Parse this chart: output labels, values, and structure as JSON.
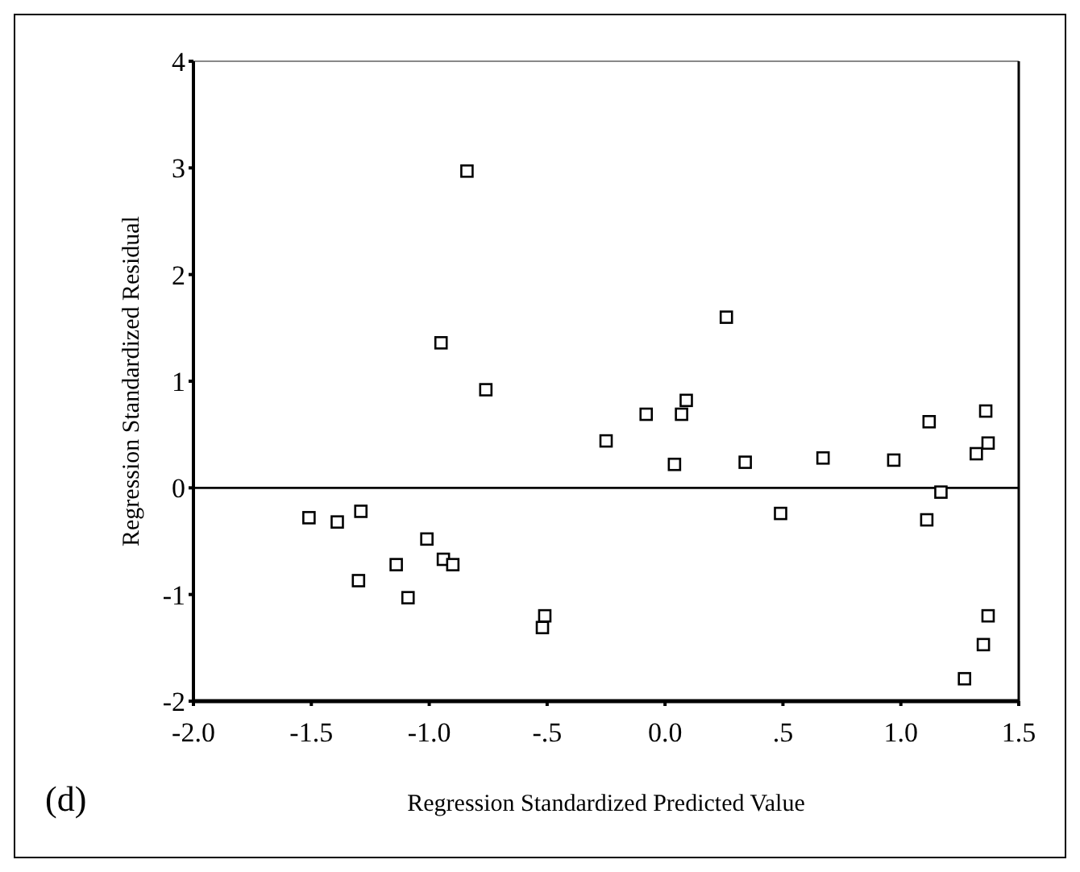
{
  "chart_data": {
    "type": "scatter",
    "xlabel": "Regression Standardized Predicted Value",
    "ylabel": "Regression Standardized Residual",
    "annotations": [
      "(d)"
    ],
    "xlim": [
      -2,
      1.5
    ],
    "ylim": [
      -2,
      4
    ],
    "xticks": [
      {
        "value": -2,
        "label": "-2.0"
      },
      {
        "value": -1.5,
        "label": "-1.5"
      },
      {
        "value": -1,
        "label": "-1.0"
      },
      {
        "value": -0.5,
        "label": "-.5"
      },
      {
        "value": 0,
        "label": "0.0"
      },
      {
        "value": 0.5,
        "label": ".5"
      },
      {
        "value": 1,
        "label": "1.0"
      },
      {
        "value": 1.5,
        "label": "1.5"
      }
    ],
    "yticks": [
      -2,
      -1,
      0,
      1,
      2,
      3,
      4
    ],
    "grid": false,
    "marker": "square",
    "ref_lines": [
      {
        "axis": "y",
        "value": 0,
        "color": "#000000"
      }
    ],
    "series": [
      {
        "color": "#000000",
        "x": [
          -1.51,
          -1.39,
          -1.29,
          -1.3,
          -1.14,
          -1.09,
          -1.01,
          -0.94,
          -0.9,
          -0.52,
          -0.51,
          -0.25,
          -0.84,
          -0.95,
          -0.76,
          0.26,
          -0.08,
          0.07,
          0.09,
          0.04,
          0.34,
          0.67,
          0.97,
          1.12,
          1.36,
          1.37,
          1.32,
          1.17,
          0.49,
          1.11,
          1.37,
          1.35,
          1.27
        ],
        "values": [
          -0.28,
          -0.32,
          -0.22,
          -0.87,
          -0.72,
          -1.03,
          -0.48,
          -0.67,
          -0.72,
          -1.31,
          -1.2,
          0.44,
          2.97,
          1.36,
          0.92,
          1.6,
          0.69,
          0.69,
          0.82,
          0.22,
          0.24,
          0.28,
          0.26,
          0.62,
          0.72,
          0.42,
          0.32,
          -0.04,
          -0.24,
          -0.3,
          -1.2,
          -1.47,
          -1.79
        ]
      }
    ]
  }
}
